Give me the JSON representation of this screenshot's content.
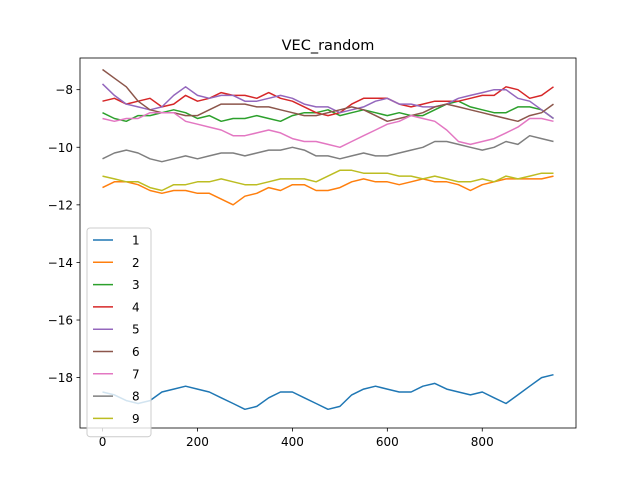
{
  "chart_data": {
    "type": "line",
    "title": "VEC_random",
    "xlabel": "",
    "ylabel": "",
    "xlim": [
      -47.5,
      997.5
    ],
    "ylim": [
      -19.75,
      -6.9
    ],
    "xticks": [
      0,
      200,
      400,
      600,
      800
    ],
    "yticks": [
      -8,
      -10,
      -12,
      -14,
      -16,
      -18
    ],
    "grid": false,
    "legend_position": "lower-left",
    "x": [
      0,
      25,
      50,
      75,
      100,
      125,
      150,
      175,
      200,
      225,
      250,
      275,
      300,
      325,
      350,
      375,
      400,
      425,
      450,
      475,
      500,
      525,
      550,
      575,
      600,
      625,
      650,
      675,
      700,
      725,
      750,
      775,
      800,
      825,
      850,
      875,
      900,
      925,
      950
    ],
    "series": [
      {
        "name": "1",
        "color": "#1f77b4",
        "values": [
          -18.5,
          -18.6,
          -18.8,
          -18.9,
          -18.8,
          -18.5,
          -18.4,
          -18.3,
          -18.4,
          -18.5,
          -18.7,
          -18.9,
          -19.1,
          -19.0,
          -18.7,
          -18.5,
          -18.5,
          -18.7,
          -18.9,
          -19.1,
          -19.0,
          -18.6,
          -18.4,
          -18.3,
          -18.4,
          -18.5,
          -18.5,
          -18.3,
          -18.2,
          -18.4,
          -18.5,
          -18.6,
          -18.5,
          -18.7,
          -18.9,
          -18.6,
          -18.3,
          -18.0,
          -17.9
        ]
      },
      {
        "name": "2",
        "color": "#ff7f0e",
        "values": [
          -11.4,
          -11.2,
          -11.2,
          -11.3,
          -11.5,
          -11.6,
          -11.5,
          -11.5,
          -11.6,
          -11.6,
          -11.8,
          -12.0,
          -11.7,
          -11.6,
          -11.4,
          -11.5,
          -11.3,
          -11.3,
          -11.5,
          -11.5,
          -11.4,
          -11.2,
          -11.1,
          -11.2,
          -11.2,
          -11.3,
          -11.2,
          -11.1,
          -11.2,
          -11.2,
          -11.3,
          -11.5,
          -11.3,
          -11.2,
          -11.1,
          -11.1,
          -11.1,
          -11.1,
          -11.0
        ]
      },
      {
        "name": "3",
        "color": "#2ca02c",
        "values": [
          -8.8,
          -9.0,
          -9.1,
          -8.9,
          -8.9,
          -8.8,
          -8.7,
          -8.8,
          -9.0,
          -8.9,
          -9.1,
          -9.0,
          -9.0,
          -8.9,
          -9.0,
          -9.1,
          -8.9,
          -8.8,
          -8.8,
          -8.7,
          -8.9,
          -8.8,
          -8.7,
          -8.8,
          -8.9,
          -8.8,
          -8.9,
          -8.9,
          -8.7,
          -8.5,
          -8.4,
          -8.6,
          -8.7,
          -8.8,
          -8.8,
          -8.6,
          -8.6,
          -8.7,
          -9.0
        ]
      },
      {
        "name": "4",
        "color": "#d62728",
        "values": [
          -8.4,
          -8.3,
          -8.5,
          -8.4,
          -8.3,
          -8.6,
          -8.5,
          -8.2,
          -8.4,
          -8.3,
          -8.1,
          -8.2,
          -8.2,
          -8.3,
          -8.1,
          -8.3,
          -8.4,
          -8.6,
          -8.8,
          -8.9,
          -8.8,
          -8.5,
          -8.3,
          -8.3,
          -8.3,
          -8.5,
          -8.6,
          -8.5,
          -8.4,
          -8.4,
          -8.4,
          -8.3,
          -8.2,
          -8.2,
          -7.9,
          -8.0,
          -8.3,
          -8.2,
          -7.9
        ]
      },
      {
        "name": "5",
        "color": "#9467bd",
        "values": [
          -7.8,
          -8.2,
          -8.5,
          -8.6,
          -8.7,
          -8.6,
          -8.2,
          -7.9,
          -8.2,
          -8.3,
          -8.2,
          -8.2,
          -8.4,
          -8.4,
          -8.3,
          -8.2,
          -8.3,
          -8.5,
          -8.6,
          -8.6,
          -8.8,
          -8.7,
          -8.6,
          -8.4,
          -8.3,
          -8.5,
          -8.5,
          -8.6,
          -8.6,
          -8.5,
          -8.3,
          -8.2,
          -8.1,
          -8.0,
          -8.0,
          -8.3,
          -8.4,
          -8.7,
          -9.0
        ]
      },
      {
        "name": "6",
        "color": "#8c564b",
        "values": [
          -7.3,
          -7.6,
          -7.9,
          -8.4,
          -8.7,
          -8.8,
          -8.8,
          -8.9,
          -8.9,
          -8.7,
          -8.5,
          -8.5,
          -8.5,
          -8.6,
          -8.6,
          -8.7,
          -8.8,
          -8.9,
          -8.9,
          -8.8,
          -8.7,
          -8.6,
          -8.7,
          -8.9,
          -9.1,
          -9.0,
          -8.9,
          -8.8,
          -8.6,
          -8.5,
          -8.6,
          -8.7,
          -8.8,
          -8.9,
          -9.0,
          -9.1,
          -8.9,
          -8.8,
          -8.5
        ]
      },
      {
        "name": "7",
        "color": "#e377c2",
        "values": [
          -9.0,
          -9.1,
          -9.0,
          -9.0,
          -8.8,
          -8.8,
          -8.8,
          -9.1,
          -9.2,
          -9.3,
          -9.4,
          -9.6,
          -9.6,
          -9.5,
          -9.4,
          -9.5,
          -9.7,
          -9.8,
          -9.8,
          -9.9,
          -10.0,
          -9.8,
          -9.6,
          -9.4,
          -9.2,
          -9.1,
          -8.9,
          -9.0,
          -9.1,
          -9.4,
          -9.8,
          -9.9,
          -9.8,
          -9.7,
          -9.5,
          -9.3,
          -9.0,
          -9.0,
          -9.1
        ]
      },
      {
        "name": "8",
        "color": "#7f7f7f",
        "values": [
          -10.4,
          -10.2,
          -10.1,
          -10.2,
          -10.4,
          -10.5,
          -10.4,
          -10.3,
          -10.4,
          -10.3,
          -10.2,
          -10.2,
          -10.3,
          -10.2,
          -10.1,
          -10.1,
          -10.0,
          -10.1,
          -10.3,
          -10.3,
          -10.4,
          -10.3,
          -10.2,
          -10.3,
          -10.3,
          -10.2,
          -10.1,
          -10.0,
          -9.8,
          -9.8,
          -9.9,
          -10.0,
          -10.1,
          -10.0,
          -9.8,
          -9.9,
          -9.6,
          -9.7,
          -9.8
        ]
      },
      {
        "name": "9",
        "color": "#bcbd22",
        "values": [
          -11.0,
          -11.1,
          -11.2,
          -11.2,
          -11.4,
          -11.5,
          -11.3,
          -11.3,
          -11.2,
          -11.2,
          -11.1,
          -11.2,
          -11.3,
          -11.3,
          -11.2,
          -11.1,
          -11.1,
          -11.1,
          -11.2,
          -11.0,
          -10.8,
          -10.8,
          -10.9,
          -10.9,
          -10.9,
          -11.0,
          -11.0,
          -11.1,
          -11.0,
          -11.1,
          -11.2,
          -11.2,
          -11.1,
          -11.2,
          -11.0,
          -11.1,
          -11.0,
          -10.9,
          -10.9
        ]
      }
    ]
  }
}
